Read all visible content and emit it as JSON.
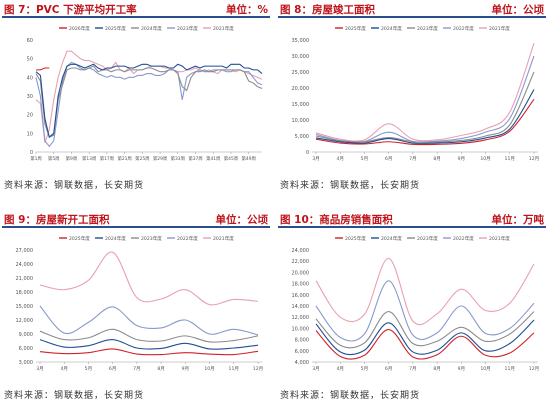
{
  "panels": [
    {
      "title": "图 7：PVC 下游平均开工率",
      "unit": "单位：%",
      "source": "资料来源：钢联数据，长安期货",
      "chart_data": {
        "type": "line",
        "yticks": [
          "0",
          "10",
          "20",
          "30",
          "40",
          "50",
          "60"
        ],
        "ylim": [
          0,
          60
        ],
        "x_tick_labels": [
          "第1周",
          "第5周",
          "第9周",
          "第13周",
          "第17周",
          "第21周",
          "第25周",
          "第29周",
          "第33周",
          "第37周",
          "第41周",
          "第45周",
          "第49周"
        ],
        "series": [
          {
            "name": "2026年度",
            "color": "#d0212a",
            "y": [
              44,
              44,
              45,
              45
            ]
          },
          {
            "name": "2025年度",
            "color": "#1f4e96",
            "y": [
              43,
              41,
              18,
              8,
              10,
              30,
              40,
              46,
              47,
              47,
              46,
              45,
              46,
              47,
              45,
              44,
              45,
              45,
              46,
              46,
              46,
              45,
              45,
              46,
              47,
              47,
              46,
              46,
              46,
              46,
              45,
              45,
              47,
              46,
              44,
              45,
              46,
              45,
              46,
              46,
              46,
              46,
              46,
              45,
              47,
              47,
              47,
              45,
              45,
              44,
              44,
              42
            ]
          },
          {
            "name": "2024年度",
            "color": "#8c8c8c",
            "y": [
              42,
              38,
              15,
              8,
              9,
              28,
              36,
              44,
              45,
              45,
              44,
              44,
              45,
              46,
              43,
              44,
              44,
              43,
              44,
              44,
              43,
              44,
              44,
              44,
              44,
              45,
              45,
              44,
              43,
              43,
              44,
              44,
              42,
              35,
              33,
              40,
              43,
              43,
              44,
              43,
              43,
              44,
              44,
              44,
              44,
              44,
              44,
              43,
              38,
              37,
              35,
              34
            ]
          },
          {
            "name": "2023年度",
            "color": "#8a99cc",
            "y": [
              40,
              30,
              6,
              3,
              6,
              22,
              38,
              46,
              48,
              47,
              45,
              44,
              45,
              44,
              42,
              41,
              40,
              41,
              40,
              40,
              39,
              40,
              40,
              41,
              41,
              42,
              42,
              41,
              41,
              42,
              44,
              44,
              43,
              28,
              40,
              42,
              43,
              44,
              43,
              43,
              44,
              44,
              44,
              43,
              43,
              44,
              44,
              43,
              43,
              40,
              37,
              36
            ]
          },
          {
            "name": "2021年度",
            "color": "#e8a0b4",
            "y": [
              28,
              26,
              5,
              12,
              28,
              40,
              48,
              54,
              54,
              52,
              50,
              49,
              49,
              48,
              47,
              46,
              44,
              45,
              48,
              44,
              43,
              45,
              42,
              44,
              44,
              45,
              46,
              46,
              46,
              45,
              45,
              44,
              43,
              43,
              44,
              44,
              45,
              44,
              43,
              44,
              43,
              42,
              44,
              44,
              44,
              43,
              44,
              43,
              42,
              41,
              40,
              39
            ]
          }
        ]
      }
    },
    {
      "title": "图 8：房屋竣工面积",
      "unit": "单位：公顷",
      "source": "资料来源：钢联数据，长安期货",
      "chart_data": {
        "type": "line",
        "yticks": [
          "0",
          "5,000",
          "10,000",
          "15,000",
          "20,000",
          "25,000",
          "30,000",
          "35,000"
        ],
        "ylim": [
          0,
          35000
        ],
        "x_tick_labels": [
          "3月",
          "4月",
          "5月",
          "6月",
          "7月",
          "8月",
          "9月",
          "10月",
          "11月",
          "12月"
        ],
        "series": [
          {
            "name": "2025年度",
            "color": "#d0212a",
            "y": [
              4000,
              2800,
              2500,
              3200,
              2400,
              2400,
              2700,
              3800,
              6500,
              16500
            ]
          },
          {
            "name": "2024年度",
            "color": "#1f4e96",
            "y": [
              4400,
              3200,
              2800,
              4200,
              2800,
              2800,
              3200,
              4400,
              7200,
              19500
            ]
          },
          {
            "name": "2023年度",
            "color": "#8c8c8c",
            "y": [
              5000,
              3500,
              3200,
              4500,
              3200,
              3100,
              3600,
              5000,
              8500,
              25000
            ]
          },
          {
            "name": "2022年度",
            "color": "#8a99cc",
            "y": [
              5500,
              3600,
              3300,
              6200,
              3300,
              3400,
              4200,
              6200,
              10500,
              30000
            ]
          },
          {
            "name": "2021年度",
            "color": "#e8a0b4",
            "y": [
              6000,
              4000,
              3800,
              8800,
              4000,
              3800,
              5200,
              7200,
              12500,
              34000
            ]
          }
        ]
      }
    },
    {
      "title": "图 9：房屋新开工面积",
      "unit": "单位：公顷",
      "source": "资料来源：钢联数据，长安期货",
      "chart_data": {
        "type": "line",
        "yticks": [
          "3,000",
          "6,000",
          "9,000",
          "12,000",
          "15,000",
          "18,000",
          "21,000",
          "24,000",
          "27,000"
        ],
        "ylim": [
          3000,
          27000
        ],
        "x_tick_labels": [
          "3月",
          "4月",
          "5月",
          "6月",
          "7月",
          "8月",
          "9月",
          "10月",
          "11月",
          "12月"
        ],
        "series": [
          {
            "name": "2025年度",
            "color": "#d0212a",
            "y": [
              5200,
              4800,
              5000,
              5800,
              4700,
              4600,
              5000,
              4700,
              4600,
              5300
            ]
          },
          {
            "name": "2024年度",
            "color": "#1f4e96",
            "y": [
              7800,
              6200,
              6500,
              7800,
              6000,
              5900,
              7000,
              5800,
              6000,
              6600
            ]
          },
          {
            "name": "2023年度",
            "color": "#8c8c8c",
            "y": [
              9600,
              7800,
              8200,
              10000,
              7800,
              7500,
              8600,
              7300,
              7600,
              8600
            ]
          },
          {
            "name": "2022年度",
            "color": "#8a99cc",
            "y": [
              15000,
              9200,
              11500,
              14800,
              10800,
              10300,
              12000,
              9000,
              10000,
              8800
            ]
          },
          {
            "name": "2021年度",
            "color": "#e8a0b4",
            "y": [
              19500,
              18500,
              20500,
              26500,
              16800,
              16500,
              18500,
              15300,
              16400,
              16000
            ]
          }
        ]
      }
    },
    {
      "title": "图 10：商品房销售面积",
      "unit": "单位：万吨",
      "source": "资料来源：钢联数据，长安期货",
      "chart_data": {
        "type": "line",
        "yticks": [
          "4,000",
          "6,000",
          "8,000",
          "10,000",
          "12,000",
          "14,000",
          "16,000",
          "18,000",
          "20,000",
          "22,000",
          "24,000"
        ],
        "ylim": [
          4000,
          24000
        ],
        "x_tick_labels": [
          "3月",
          "4月",
          "5月",
          "6月",
          "7月",
          "8月",
          "9月",
          "10月",
          "11月",
          "12月"
        ],
        "series": [
          {
            "name": "2025年度",
            "color": "#d0212a",
            "y": [
              9600,
              5000,
              5200,
              9800,
              4900,
              5300,
              8600,
              5200,
              5600,
              9200
            ]
          },
          {
            "name": "2024年度",
            "color": "#1f4e96",
            "y": [
              10800,
              5800,
              6100,
              11000,
              5800,
              6100,
              9200,
              6000,
              7300,
              11500
            ]
          },
          {
            "name": "2023年度",
            "color": "#8c8c8c",
            "y": [
              11700,
              7000,
              7400,
              13000,
              7300,
              7700,
              10200,
              7700,
              9000,
              13000
            ]
          },
          {
            "name": "2022年度",
            "color": "#8a99cc",
            "y": [
              14000,
              8400,
              9000,
              18500,
              8800,
              9200,
              14000,
              9100,
              10000,
              14500
            ]
          },
          {
            "name": "2021年度",
            "color": "#e8a0b4",
            "y": [
              18500,
              12000,
              12500,
              22500,
              11300,
              12600,
              17000,
              13200,
              14500,
              21500
            ]
          }
        ]
      }
    }
  ]
}
